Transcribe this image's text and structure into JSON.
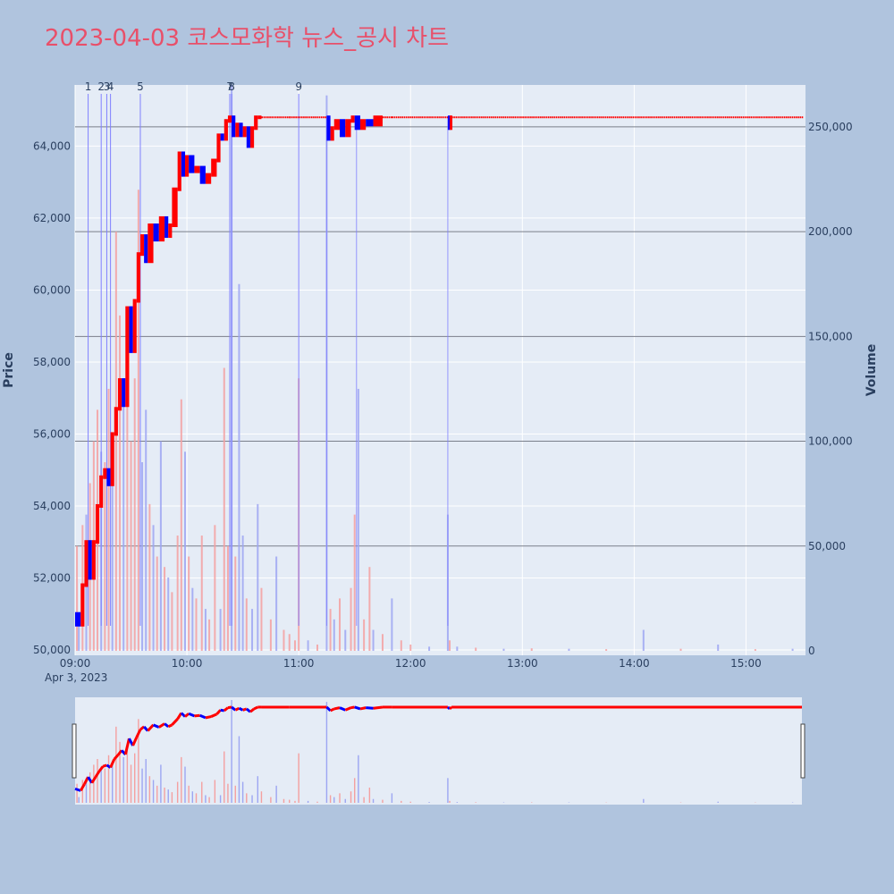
{
  "title": "2023-04-03 코스모화학 뉴스_공시 차트",
  "colors": {
    "background": "#b0c4de",
    "plot_bg": "#e5ecf6",
    "title": "#e8506a",
    "up": "#ff0000",
    "down": "#0000ff",
    "volume_up": "#f4a0a0",
    "volume_down": "#9da6f2",
    "news_line": "#8080ff"
  },
  "chart_data": {
    "type": "candlestick",
    "price_axis": {
      "label": "Price",
      "range": [
        49850,
        65700
      ],
      "ticks": [
        50000,
        52000,
        54000,
        56000,
        58000,
        60000,
        62000,
        64000
      ],
      "tick_labels": [
        "50,000",
        "52,000",
        "54,000",
        "56,000",
        "58,000",
        "60,000",
        "62,000",
        "64,000"
      ]
    },
    "volume_axis": {
      "label": "Volume",
      "range": [
        0,
        270000
      ],
      "ticks": [
        0,
        50000,
        100000,
        150000,
        200000,
        250000
      ],
      "tick_labels": [
        "0",
        "50,000",
        "100,000",
        "150,000",
        "200,000",
        "250,000"
      ]
    },
    "time_axis": {
      "range": [
        "09:00",
        "15:30"
      ],
      "ticks": [
        "09:00",
        "10:00",
        "11:00",
        "12:00",
        "13:00",
        "14:00",
        "15:00"
      ],
      "date_label": "Apr 3, 2023"
    },
    "price_path": [
      [
        "09:00",
        51000
      ],
      [
        "09:03",
        50700
      ],
      [
        "09:05",
        51800
      ],
      [
        "09:07",
        53000
      ],
      [
        "09:09",
        52000
      ],
      [
        "09:11",
        53000
      ],
      [
        "09:13",
        54000
      ],
      [
        "09:15",
        54800
      ],
      [
        "09:17",
        55000
      ],
      [
        "09:19",
        54600
      ],
      [
        "09:21",
        56000
      ],
      [
        "09:23",
        56700
      ],
      [
        "09:25",
        57500
      ],
      [
        "09:27",
        56800
      ],
      [
        "09:29",
        59500
      ],
      [
        "09:31",
        58300
      ],
      [
        "09:33",
        59700
      ],
      [
        "09:35",
        61000
      ],
      [
        "09:37",
        61500
      ],
      [
        "09:39",
        60800
      ],
      [
        "09:42",
        61800
      ],
      [
        "09:45",
        61400
      ],
      [
        "09:48",
        62000
      ],
      [
        "09:50",
        61500
      ],
      [
        "09:52",
        61800
      ],
      [
        "09:55",
        62800
      ],
      [
        "09:57",
        63800
      ],
      [
        "09:59",
        63200
      ],
      [
        "10:01",
        63700
      ],
      [
        "10:04",
        63300
      ],
      [
        "10:07",
        63400
      ],
      [
        "10:10",
        63000
      ],
      [
        "10:13",
        63200
      ],
      [
        "10:16",
        63600
      ],
      [
        "10:18",
        64300
      ],
      [
        "10:20",
        64200
      ],
      [
        "10:22",
        64700
      ],
      [
        "10:24",
        64800
      ],
      [
        "10:26",
        64300
      ],
      [
        "10:28",
        64600
      ],
      [
        "10:30",
        64300
      ],
      [
        "10:32",
        64500
      ],
      [
        "10:34",
        64000
      ],
      [
        "10:36",
        64500
      ],
      [
        "10:38",
        64800
      ],
      [
        "10:40",
        64800
      ],
      [
        "10:55",
        64800
      ],
      [
        "11:15",
        64800
      ],
      [
        "11:17",
        64200
      ],
      [
        "11:19",
        64500
      ],
      [
        "11:22",
        64700
      ],
      [
        "11:25",
        64300
      ],
      [
        "11:28",
        64700
      ],
      [
        "11:30",
        64800
      ],
      [
        "11:33",
        64500
      ],
      [
        "11:36",
        64700
      ],
      [
        "11:40",
        64600
      ],
      [
        "11:45",
        64800
      ],
      [
        "11:50",
        64800
      ],
      [
        "12:20",
        64800
      ],
      [
        "12:21",
        64500
      ],
      [
        "12:22",
        64800
      ],
      [
        "15:30",
        64800
      ]
    ],
    "volume_bars": [
      [
        "09:01",
        50000,
        "up"
      ],
      [
        "09:02",
        15000,
        "down"
      ],
      [
        "09:04",
        60000,
        "up"
      ],
      [
        "09:06",
        65000,
        "down"
      ],
      [
        "09:08",
        80000,
        "up"
      ],
      [
        "09:10",
        100000,
        "up"
      ],
      [
        "09:12",
        115000,
        "up"
      ],
      [
        "09:14",
        95000,
        "down"
      ],
      [
        "09:16",
        90000,
        "up"
      ],
      [
        "09:18",
        125000,
        "up"
      ],
      [
        "09:20",
        100000,
        "down"
      ],
      [
        "09:22",
        200000,
        "up"
      ],
      [
        "09:24",
        160000,
        "up"
      ],
      [
        "09:26",
        120000,
        "down"
      ],
      [
        "09:28",
        155000,
        "up"
      ],
      [
        "09:30",
        100000,
        "up"
      ],
      [
        "09:32",
        130000,
        "up"
      ],
      [
        "09:34",
        220000,
        "up"
      ],
      [
        "09:36",
        90000,
        "down"
      ],
      [
        "09:38",
        115000,
        "down"
      ],
      [
        "09:40",
        70000,
        "up"
      ],
      [
        "09:42",
        60000,
        "down"
      ],
      [
        "09:44",
        45000,
        "up"
      ],
      [
        "09:46",
        100000,
        "down"
      ],
      [
        "09:48",
        40000,
        "up"
      ],
      [
        "09:50",
        35000,
        "down"
      ],
      [
        "09:52",
        28000,
        "up"
      ],
      [
        "09:55",
        55000,
        "up"
      ],
      [
        "09:57",
        120000,
        "up"
      ],
      [
        "09:59",
        95000,
        "down"
      ],
      [
        "10:01",
        45000,
        "up"
      ],
      [
        "10:03",
        30000,
        "down"
      ],
      [
        "10:05",
        25000,
        "up"
      ],
      [
        "10:08",
        55000,
        "up"
      ],
      [
        "10:10",
        20000,
        "down"
      ],
      [
        "10:12",
        15000,
        "up"
      ],
      [
        "10:15",
        60000,
        "up"
      ],
      [
        "10:18",
        20000,
        "down"
      ],
      [
        "10:20",
        135000,
        "up"
      ],
      [
        "10:22",
        50000,
        "up"
      ],
      [
        "10:24",
        270000,
        "down"
      ],
      [
        "10:26",
        45000,
        "up"
      ],
      [
        "10:28",
        175000,
        "down"
      ],
      [
        "10:30",
        55000,
        "down"
      ],
      [
        "10:32",
        25000,
        "up"
      ],
      [
        "10:35",
        20000,
        "down"
      ],
      [
        "10:38",
        70000,
        "down"
      ],
      [
        "10:40",
        30000,
        "up"
      ],
      [
        "10:45",
        15000,
        "up"
      ],
      [
        "10:48",
        45000,
        "down"
      ],
      [
        "10:52",
        10000,
        "up"
      ],
      [
        "10:55",
        8000,
        "up"
      ],
      [
        "10:58",
        5000,
        "up"
      ],
      [
        "11:00",
        130000,
        "up"
      ],
      [
        "11:05",
        5000,
        "down"
      ],
      [
        "11:10",
        3000,
        "up"
      ],
      [
        "11:15",
        265000,
        "down"
      ],
      [
        "11:17",
        20000,
        "up"
      ],
      [
        "11:19",
        15000,
        "down"
      ],
      [
        "11:22",
        25000,
        "up"
      ],
      [
        "11:25",
        10000,
        "down"
      ],
      [
        "11:28",
        30000,
        "up"
      ],
      [
        "11:30",
        65000,
        "up"
      ],
      [
        "11:32",
        125000,
        "down"
      ],
      [
        "11:35",
        15000,
        "up"
      ],
      [
        "11:38",
        40000,
        "up"
      ],
      [
        "11:40",
        10000,
        "down"
      ],
      [
        "11:45",
        8000,
        "up"
      ],
      [
        "11:50",
        25000,
        "down"
      ],
      [
        "11:55",
        5000,
        "up"
      ],
      [
        "12:00",
        3000,
        "up"
      ],
      [
        "12:10",
        2000,
        "down"
      ],
      [
        "12:20",
        65000,
        "down"
      ],
      [
        "12:21",
        5000,
        "up"
      ],
      [
        "12:25",
        2000,
        "down"
      ],
      [
        "12:35",
        1500,
        "up"
      ],
      [
        "12:50",
        1000,
        "down"
      ],
      [
        "13:05",
        1200,
        "up"
      ],
      [
        "13:25",
        1000,
        "down"
      ],
      [
        "13:45",
        800,
        "up"
      ],
      [
        "14:05",
        10000,
        "down"
      ],
      [
        "14:25",
        1000,
        "up"
      ],
      [
        "14:45",
        3000,
        "down"
      ],
      [
        "15:05",
        800,
        "up"
      ],
      [
        "15:25",
        1000,
        "down"
      ]
    ],
    "news_markers": [
      {
        "label": "1",
        "time": "09:07"
      },
      {
        "label": "2",
        "time": "09:14"
      },
      {
        "label": "3",
        "time": "09:17"
      },
      {
        "label": "4",
        "time": "09:19"
      },
      {
        "label": "5",
        "time": "09:35"
      },
      {
        "label": "7",
        "time": "10:23"
      },
      {
        "label": "8",
        "time": "10:24"
      },
      {
        "label": "9",
        "time": "11:00"
      }
    ],
    "extra_vertical_lines": [
      "11:15",
      "11:31",
      "12:20"
    ]
  }
}
